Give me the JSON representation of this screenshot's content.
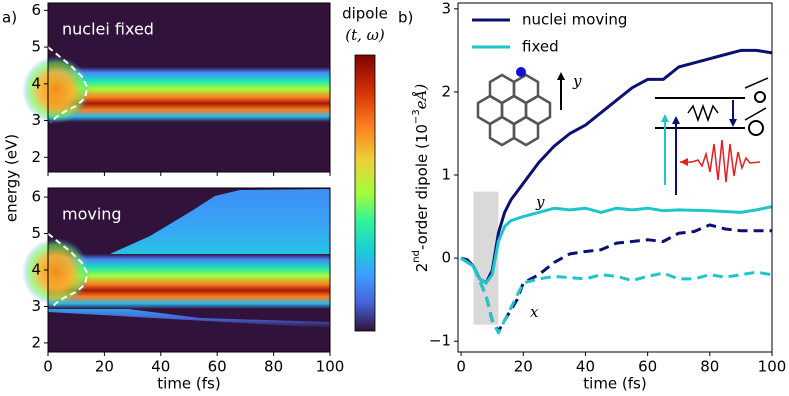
{
  "chart_data": [
    {
      "type": "heatmap",
      "panel_label": "a)",
      "title": "nuclei fixed",
      "ylabel": "energy (eV)",
      "colormap": "turbo",
      "colorbar_label": [
        "dipole",
        "(t, ω)"
      ],
      "xlim": [
        0,
        100
      ],
      "xticks": [
        0,
        20,
        40,
        60,
        80,
        100
      ],
      "xtick_labels": false,
      "ylim": [
        1.6,
        6.2
      ],
      "yticks": [
        2,
        3,
        4,
        5,
        6
      ],
      "series": [
        {
          "color": "#ffffff",
          "linestyle": "dashed",
          "x": [
            0,
            4,
            8,
            12,
            14,
            13,
            10,
            6,
            3,
            1
          ],
          "values": [
            5.0,
            4.75,
            4.5,
            4.2,
            3.9,
            3.6,
            3.4,
            3.25,
            3.1,
            2.95
          ]
        }
      ]
    },
    {
      "type": "heatmap",
      "title": "moving",
      "xlabel": "time (fs)",
      "colormap": "turbo",
      "xlim": [
        0,
        100
      ],
      "xticks": [
        0,
        20,
        40,
        60,
        80,
        100
      ],
      "ylim": [
        1.75,
        6.25
      ],
      "yticks": [
        2,
        3,
        4,
        5,
        6
      ],
      "series": [
        {
          "color": "#ffffff",
          "linestyle": "dashed",
          "x": [
            0,
            4,
            8,
            12,
            14,
            13,
            10,
            6,
            3,
            1
          ],
          "values": [
            5.0,
            4.75,
            4.5,
            4.2,
            3.9,
            3.6,
            3.4,
            3.25,
            3.1,
            2.95
          ]
        }
      ]
    },
    {
      "type": "line",
      "panel_label": "b)",
      "xlabel": "time (fs)",
      "ylabel": [
        "2",
        "nd",
        "-order dipole (10",
        "−3",
        "eÅ)"
      ],
      "xlim": [
        -1,
        100
      ],
      "xticks": [
        0,
        20,
        40,
        60,
        80,
        100
      ],
      "ylim": [
        -1.13,
        3.07
      ],
      "yticks": [
        {
          "value": -1,
          "label": "−1"
        },
        0,
        1,
        2,
        3
      ],
      "legend": "upper left",
      "annotations": [
        "y",
        "x"
      ],
      "inset_label": "y",
      "span": {
        "x": [
          4,
          12
        ],
        "y": [
          -0.8,
          0.8
        ],
        "color": "#d9d9d9"
      },
      "series": [
        {
          "name": "nuclei moving",
          "color": "#0a1172",
          "linestyle": "solid",
          "x": [
            0,
            2,
            4,
            6,
            8,
            10,
            12,
            14,
            16,
            18,
            20,
            25,
            30,
            35,
            40,
            45,
            50,
            55,
            60,
            65,
            70,
            75,
            80,
            85,
            90,
            95,
            100
          ],
          "values": [
            0,
            -0.02,
            -0.1,
            -0.25,
            -0.3,
            -0.15,
            0.3,
            0.55,
            0.7,
            0.8,
            0.9,
            1.15,
            1.35,
            1.5,
            1.6,
            1.75,
            1.9,
            2.05,
            2.15,
            2.15,
            2.3,
            2.35,
            2.4,
            2.45,
            2.5,
            2.5,
            2.47
          ]
        },
        {
          "name": "fixed",
          "color": "#1fc6c8",
          "linestyle": "solid",
          "x": [
            0,
            4,
            6,
            8,
            10,
            12,
            14,
            16,
            20,
            25,
            30,
            35,
            40,
            45,
            50,
            55,
            60,
            65,
            70,
            80,
            90,
            95,
            100
          ],
          "values": [
            0,
            -0.1,
            -0.25,
            -0.3,
            -0.2,
            0.2,
            0.38,
            0.45,
            0.5,
            0.55,
            0.6,
            0.58,
            0.6,
            0.55,
            0.6,
            0.58,
            0.6,
            0.57,
            0.58,
            0.57,
            0.55,
            0.58,
            0.62
          ]
        },
        {
          "color": "#0a1172",
          "linestyle": "dashed",
          "x": [
            0,
            4,
            8,
            10,
            12,
            14,
            18,
            20,
            25,
            30,
            35,
            40,
            45,
            50,
            55,
            60,
            65,
            70,
            75,
            80,
            85,
            90,
            100
          ],
          "values": [
            0,
            -0.1,
            -0.45,
            -0.75,
            -0.88,
            -0.75,
            -0.5,
            -0.3,
            -0.2,
            -0.05,
            0.05,
            0.08,
            0.1,
            0.18,
            0.2,
            0.22,
            0.2,
            0.3,
            0.32,
            0.4,
            0.35,
            0.33,
            0.33
          ]
        },
        {
          "color": "#1fc6c8",
          "linestyle": "dashed",
          "x": [
            0,
            4,
            8,
            10,
            12,
            14,
            18,
            20,
            25,
            30,
            40,
            45,
            50,
            55,
            60,
            65,
            70,
            75,
            80,
            85,
            90,
            95,
            100
          ],
          "values": [
            0,
            -0.1,
            -0.45,
            -0.75,
            -0.9,
            -0.75,
            -0.45,
            -0.3,
            -0.25,
            -0.22,
            -0.25,
            -0.2,
            -0.22,
            -0.27,
            -0.22,
            -0.18,
            -0.25,
            -0.25,
            -0.2,
            -0.23,
            -0.2,
            -0.17,
            -0.2
          ]
        }
      ]
    }
  ]
}
